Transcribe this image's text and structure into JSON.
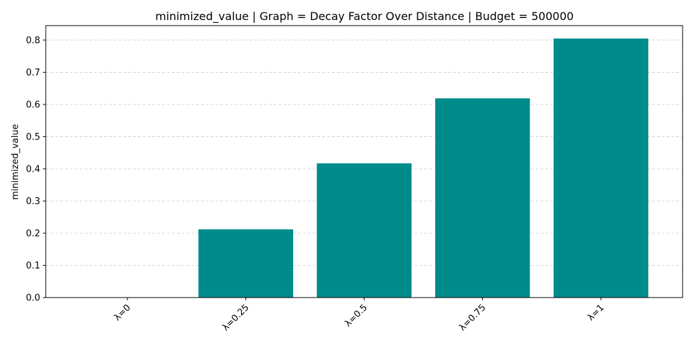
{
  "chart_data": {
    "type": "bar",
    "title": "minimized_value | Graph = Decay Factor Over Distance | Budget = 500000",
    "xlabel": "",
    "ylabel": "minimized_value",
    "categories": [
      "λ=0",
      "λ=0.25",
      "λ=0.5",
      "λ=0.75",
      "λ=1"
    ],
    "values": [
      0.0,
      0.212,
      0.417,
      0.619,
      0.805
    ],
    "ylim": [
      0,
      0.845
    ],
    "yticks": [
      0.0,
      0.1,
      0.2,
      0.3,
      0.4,
      0.5,
      0.6,
      0.7,
      0.8
    ],
    "ytick_labels": [
      "0.0",
      "0.1",
      "0.2",
      "0.3",
      "0.4",
      "0.5",
      "0.6",
      "0.7",
      "0.8"
    ],
    "grid": "y-axis, dashed",
    "bar_color": "#008b8b",
    "grid_color": "#cccccc",
    "xtick_rotation": "45 degrees",
    "legend": "none"
  }
}
